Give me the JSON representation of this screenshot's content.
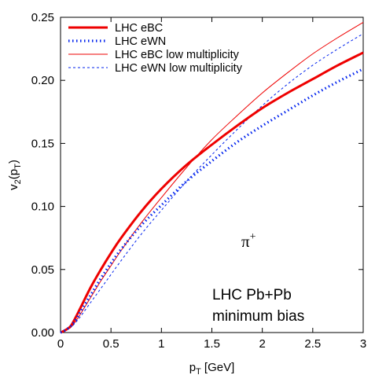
{
  "chart_data": {
    "type": "line",
    "xlabel": {
      "main": "p",
      "sub": "T",
      "rest": " [GeV]"
    },
    "ylabel": {
      "main": "v",
      "sub1": "2",
      "paren_open": "(p",
      "sub2": "T",
      "paren_close": ")"
    },
    "xlim": [
      0,
      3
    ],
    "ylim": [
      0,
      0.25
    ],
    "x_ticks": [
      0,
      0.5,
      1,
      1.5,
      2,
      2.5,
      3
    ],
    "x_tick_labels": [
      "0",
      "0.5",
      "1",
      "1.5",
      "2",
      "2.5",
      "3"
    ],
    "y_ticks": [
      0,
      0.05,
      0.1,
      0.15,
      0.2,
      0.25
    ],
    "y_tick_labels": [
      "0.00",
      "0.05",
      "0.10",
      "0.15",
      "0.20",
      "0.25"
    ],
    "grid": false,
    "legend_position": "top-left",
    "series": [
      {
        "name": "LHC eBC",
        "color": "#ee0000",
        "style": "solid-thick",
        "x": [
          0,
          0.05,
          0.1,
          0.15,
          0.2,
          0.3,
          0.4,
          0.5,
          0.6,
          0.8,
          1.0,
          1.25,
          1.5,
          1.75,
          2.0,
          2.25,
          2.5,
          2.75,
          3.0
        ],
        "y": [
          0,
          0.002,
          0.005,
          0.012,
          0.02,
          0.036,
          0.05,
          0.063,
          0.075,
          0.096,
          0.114,
          0.133,
          0.149,
          0.164,
          0.178,
          0.19,
          0.201,
          0.212,
          0.222
        ]
      },
      {
        "name": "LHC eWN",
        "color": "#0022ee",
        "style": "dotted-thick",
        "x": [
          0,
          0.05,
          0.1,
          0.15,
          0.2,
          0.3,
          0.4,
          0.5,
          0.6,
          0.8,
          1.0,
          1.25,
          1.5,
          1.75,
          2.0,
          2.25,
          2.5,
          2.75,
          3.0
        ],
        "y": [
          0,
          0.002,
          0.005,
          0.01,
          0.017,
          0.03,
          0.043,
          0.055,
          0.066,
          0.085,
          0.101,
          0.12,
          0.136,
          0.151,
          0.164,
          0.176,
          0.188,
          0.199,
          0.209
        ]
      },
      {
        "name": "LHC eBC low multiplicity",
        "color": "#ee0000",
        "style": "solid-thin",
        "x": [
          0,
          0.05,
          0.1,
          0.15,
          0.2,
          0.3,
          0.4,
          0.5,
          0.6,
          0.8,
          1.0,
          1.25,
          1.5,
          1.75,
          2.0,
          2.25,
          2.5,
          2.75,
          3.0
        ],
        "y": [
          0,
          0.002,
          0.004,
          0.009,
          0.015,
          0.028,
          0.041,
          0.053,
          0.065,
          0.087,
          0.107,
          0.131,
          0.153,
          0.172,
          0.19,
          0.206,
          0.221,
          0.234,
          0.246
        ]
      },
      {
        "name": "LHC eWN low multiplicity",
        "color": "#0022ee",
        "style": "dashed-thin",
        "x": [
          0,
          0.05,
          0.1,
          0.15,
          0.2,
          0.3,
          0.4,
          0.5,
          0.6,
          0.8,
          1.0,
          1.25,
          1.5,
          1.75,
          2.0,
          2.25,
          2.5,
          2.75,
          3.0
        ],
        "y": [
          0,
          0.002,
          0.004,
          0.008,
          0.013,
          0.024,
          0.035,
          0.046,
          0.057,
          0.078,
          0.097,
          0.12,
          0.141,
          0.161,
          0.18,
          0.197,
          0.212,
          0.225,
          0.237
        ]
      }
    ],
    "annotations": {
      "particle": {
        "base": "π",
        "sup": "+"
      },
      "line1": "LHC Pb+Pb",
      "line2": "minimum bias"
    }
  }
}
